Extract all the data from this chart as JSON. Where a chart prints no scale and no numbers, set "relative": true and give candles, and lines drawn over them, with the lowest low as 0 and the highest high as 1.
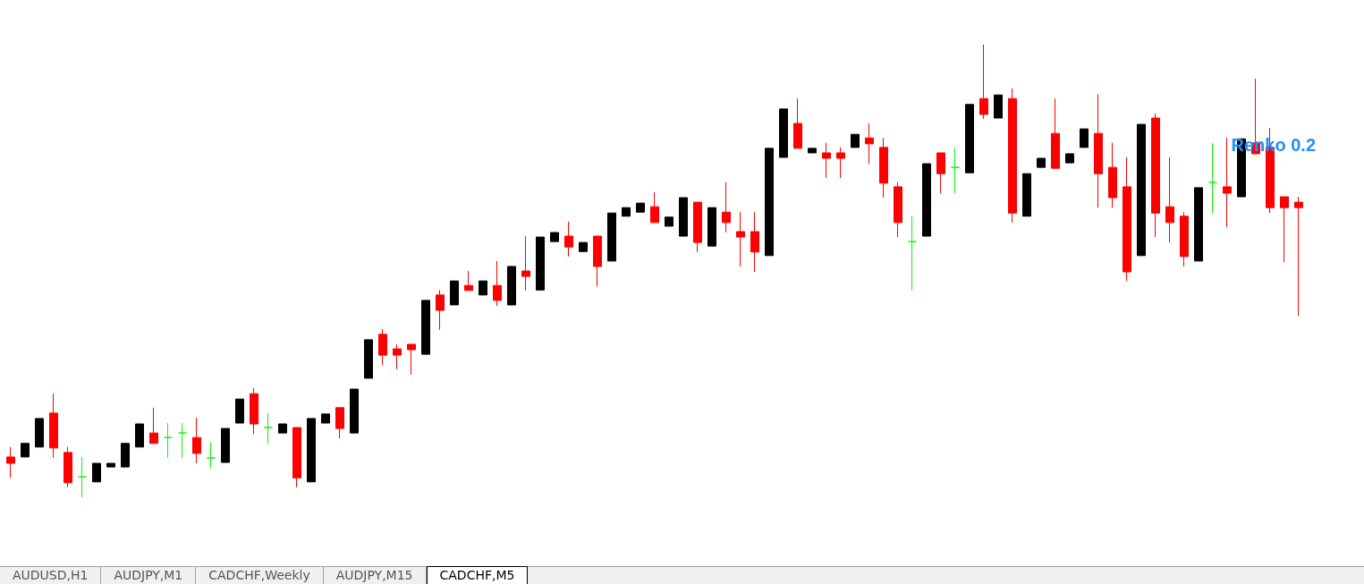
{
  "chart_data": {
    "type": "candlestick",
    "relative": true,
    "categories": [
      null,
      null,
      null,
      null,
      null,
      null,
      null,
      null,
      null,
      null,
      null,
      null,
      null,
      null,
      null,
      null,
      null,
      null,
      null,
      null,
      null,
      null,
      null,
      null,
      null,
      null,
      null,
      null,
      null,
      null,
      null,
      null,
      null,
      null,
      null,
      null,
      null,
      null,
      null,
      null,
      null,
      null,
      null,
      null,
      null,
      null,
      null,
      null,
      null,
      null,
      null,
      null,
      null,
      null,
      null,
      null,
      null,
      null,
      null,
      null,
      null,
      null,
      null,
      null,
      null,
      null,
      null,
      null,
      null,
      null,
      null,
      null,
      null,
      null,
      null,
      null,
      null,
      null,
      null,
      null,
      null,
      null,
      null,
      null,
      null,
      null,
      null,
      null,
      null,
      null,
      null
    ],
    "ohlc": [
      [
        0.089,
        0.111,
        0.043,
        0.075
      ],
      [
        0.089,
        0.119,
        0.089,
        0.119
      ],
      [
        0.111,
        0.174,
        0.111,
        0.174
      ],
      [
        0.186,
        0.229,
        0.087,
        0.109
      ],
      [
        0.099,
        0.111,
        0.022,
        0.032
      ],
      [
        0.045,
        0.089,
        0,
        0.045
      ],
      [
        0.034,
        0.075,
        0.034,
        0.075
      ],
      [
        0.067,
        0.075,
        0.067,
        0.075
      ],
      [
        0.067,
        0.119,
        0.067,
        0.119
      ],
      [
        0.111,
        0.162,
        0.111,
        0.162
      ],
      [
        0.142,
        0.198,
        0.119,
        0.119
      ],
      [
        0.132,
        0.164,
        0.087,
        0.132
      ],
      [
        0.142,
        0.164,
        0.087,
        0.142
      ],
      [
        0.132,
        0.176,
        0.075,
        0.097
      ],
      [
        0.087,
        0.121,
        0.065,
        0.087
      ],
      [
        0.077,
        0.152,
        0.077,
        0.152
      ],
      [
        0.164,
        0.217,
        0.164,
        0.217
      ],
      [
        0.229,
        0.241,
        0.14,
        0.162
      ],
      [
        0.154,
        0.186,
        0.119,
        0.154
      ],
      [
        0.142,
        0.162,
        0.142,
        0.162
      ],
      [
        0.154,
        0.154,
        0.022,
        0.043
      ],
      [
        0.034,
        0.174,
        0.034,
        0.174
      ],
      [
        0.164,
        0.184,
        0.164,
        0.184
      ],
      [
        0.198,
        0.198,
        0.13,
        0.152
      ],
      [
        0.142,
        0.239,
        0.142,
        0.239
      ],
      [
        0.263,
        0.348,
        0.263,
        0.348
      ],
      [
        0.36,
        0.372,
        0.292,
        0.314
      ],
      [
        0.328,
        0.338,
        0.283,
        0.314
      ],
      [
        0.338,
        0.338,
        0.271,
        0.326
      ],
      [
        0.316,
        0.435,
        0.316,
        0.435
      ],
      [
        0.447,
        0.458,
        0.37,
        0.413
      ],
      [
        0.425,
        0.478,
        0.425,
        0.478
      ],
      [
        0.468,
        0.5,
        0.457,
        0.457
      ],
      [
        0.447,
        0.478,
        0.447,
        0.478
      ],
      [
        0.468,
        0.522,
        0.423,
        0.435
      ],
      [
        0.425,
        0.51,
        0.425,
        0.51
      ],
      [
        0.5,
        0.577,
        0.457,
        0.488
      ],
      [
        0.458,
        0.575,
        0.458,
        0.575
      ],
      [
        0.565,
        0.585,
        0.565,
        0.585
      ],
      [
        0.577,
        0.609,
        0.532,
        0.553
      ],
      [
        0.543,
        0.563,
        0.543,
        0.563
      ],
      [
        0.577,
        0.577,
        0.466,
        0.51
      ],
      [
        0.522,
        0.628,
        0.522,
        0.628
      ],
      [
        0.621,
        0.64,
        0.621,
        0.64
      ],
      [
        0.63,
        0.65,
        0.63,
        0.65
      ],
      [
        0.642,
        0.674,
        0.607,
        0.607
      ],
      [
        0.599,
        0.619,
        0.599,
        0.619
      ],
      [
        0.577,
        0.662,
        0.577,
        0.662
      ],
      [
        0.652,
        0.652,
        0.542,
        0.563
      ],
      [
        0.555,
        0.64,
        0.555,
        0.64
      ],
      [
        0.63,
        0.696,
        0.585,
        0.607
      ],
      [
        0.587,
        0.63,
        0.51,
        0.575
      ],
      [
        0.587,
        0.63,
        0.498,
        0.542
      ],
      [
        0.534,
        0.771,
        0.534,
        0.771
      ],
      [
        0.751,
        0.858,
        0.751,
        0.858
      ],
      [
        0.826,
        0.881,
        0.771,
        0.771
      ],
      [
        0.761,
        0.771,
        0.761,
        0.771
      ],
      [
        0.761,
        0.783,
        0.706,
        0.749
      ],
      [
        0.761,
        0.773,
        0.706,
        0.749
      ],
      [
        0.773,
        0.802,
        0.773,
        0.802
      ],
      [
        0.794,
        0.826,
        0.737,
        0.781
      ],
      [
        0.773,
        0.794,
        0.662,
        0.694
      ],
      [
        0.686,
        0.696,
        0.575,
        0.607
      ],
      [
        0.565,
        0.621,
        0.457,
        0.565
      ],
      [
        0.577,
        0.737,
        0.577,
        0.737
      ],
      [
        0.761,
        0.761,
        0.672,
        0.715
      ],
      [
        0.729,
        0.773,
        0.672,
        0.729
      ],
      [
        0.717,
        0.868,
        0.717,
        0.868
      ],
      [
        0.881,
        1,
        0.836,
        0.846
      ],
      [
        0.838,
        0.889,
        0.838,
        0.889
      ],
      [
        0.881,
        0.903,
        0.607,
        0.628
      ],
      [
        0.621,
        0.715,
        0.621,
        0.715
      ],
      [
        0.729,
        0.749,
        0.729,
        0.749
      ],
      [
        0.804,
        0.881,
        0.727,
        0.727
      ],
      [
        0.739,
        0.759,
        0.739,
        0.759
      ],
      [
        0.773,
        0.814,
        0.773,
        0.814
      ],
      [
        0.804,
        0.891,
        0.64,
        0.715
      ],
      [
        0.729,
        0.783,
        0.64,
        0.662
      ],
      [
        0.686,
        0.751,
        0.478,
        0.498
      ],
      [
        0.534,
        0.824,
        0.534,
        0.824
      ],
      [
        0.838,
        0.848,
        0.575,
        0.628
      ],
      [
        0.642,
        0.751,
        0.563,
        0.607
      ],
      [
        0.621,
        0.63,
        0.51,
        0.532
      ],
      [
        0.522,
        0.684,
        0.522,
        0.684
      ],
      [
        0.696,
        0.783,
        0.628,
        0.696
      ],
      [
        0.686,
        0.794,
        0.597,
        0.672
      ],
      [
        0.664,
        0.792,
        0.664,
        0.792
      ],
      [
        0.783,
        0.925,
        0.759,
        0.759
      ],
      [
        0.773,
        0.816,
        0.628,
        0.64
      ],
      [
        0.664,
        0.664,
        0.52,
        0.64
      ],
      [
        0.652,
        0.664,
        0.401,
        0.64
      ]
    ],
    "colors": [
      "#ff0000",
      "#000000",
      "#000000",
      "#ff0000",
      "#ff0000",
      "#00ff00",
      "#000000",
      "#000000",
      "#000000",
      "#000000",
      "#ff0000",
      "#00ff00",
      "#00ff00",
      "#ff0000",
      "#00ff00",
      "#000000",
      "#000000",
      "#ff0000",
      "#00ff00",
      "#000000",
      "#ff0000",
      "#000000",
      "#000000",
      "#ff0000",
      "#000000",
      "#000000",
      "#ff0000",
      "#ff0000",
      "#ff0000",
      "#000000",
      "#ff0000",
      "#000000",
      "#ff0000",
      "#000000",
      "#ff0000",
      "#000000",
      "#ff0000",
      "#000000",
      "#000000",
      "#ff0000",
      "#000000",
      "#ff0000",
      "#000000",
      "#000000",
      "#000000",
      "#ff0000",
      "#000000",
      "#000000",
      "#ff0000",
      "#000000",
      "#ff0000",
      "#ff0000",
      "#ff0000",
      "#000000",
      "#000000",
      "#ff0000",
      "#000000",
      "#ff0000",
      "#ff0000",
      "#000000",
      "#ff0000",
      "#ff0000",
      "#ff0000",
      "#00ff00",
      "#000000",
      "#ff0000",
      "#00ff00",
      "#000000",
      "#ff0000",
      "#000000",
      "#ff0000",
      "#000000",
      "#000000",
      "#ff0000",
      "#000000",
      "#000000",
      "#ff0000",
      "#ff0000",
      "#ff0000",
      "#000000",
      "#ff0000",
      "#ff0000",
      "#ff0000",
      "#000000",
      "#00ff00",
      "#ff0000",
      "#000000",
      "#ff0000",
      "#ff0000",
      "#ff0000",
      "#ff0000"
    ],
    "annotations": [
      "Renko 0.2",
      "AUDUSD,H1",
      "AUDJPY,M1",
      "CADCHF,Weekly",
      "AUDJPY,M15",
      "CADCHF,M5"
    ]
  }
}
